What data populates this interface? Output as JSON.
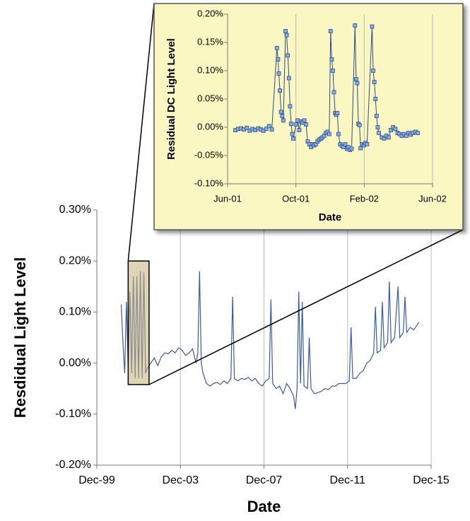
{
  "chart_data": [
    {
      "type": "line",
      "xlabel": "Date",
      "ylabel": "Resdidual Light Level",
      "xlim": [
        "1999-12",
        "2015-12"
      ],
      "xticks": [
        {
          "value": "1999-12",
          "label": "Dec-99"
        },
        {
          "value": "2003-12",
          "label": "Dec-03"
        },
        {
          "value": "2007-12",
          "label": "Dec-07"
        },
        {
          "value": "2011-12",
          "label": "Dec-11"
        },
        {
          "value": "2015-12",
          "label": "Dec-15"
        }
      ],
      "ylim": [
        -0.2,
        0.3
      ],
      "yticks": [
        {
          "value": -0.2,
          "label": "-0.20%"
        },
        {
          "value": -0.1,
          "label": "-0.10%"
        },
        {
          "value": 0,
          "label": "0.00%"
        },
        {
          "value": 0.1,
          "label": "0.10%"
        },
        {
          "value": 0.2,
          "label": "0.20%"
        },
        {
          "value": 0.3,
          "label": "0.30%"
        }
      ],
      "grid": "x",
      "series": [
        {
          "color": "#3a5ba0",
          "x": [
            "2001-02",
            "2001-03",
            "2001-04",
            "2001-05",
            "2001-06",
            "2001-07",
            "2001-08",
            "2001-09",
            "2001-10",
            "2001-11",
            "2001-12",
            "2002-01",
            "2002-02",
            "2002-03",
            "2002-04",
            "2002-05",
            "2002-07",
            "2002-09",
            "2002-11",
            "2003-01",
            "2003-03",
            "2003-05",
            "2003-07",
            "2003-09",
            "2003-11",
            "2004-01",
            "2004-03",
            "2004-05",
            "2004-07",
            "2004-09",
            "2004-10",
            "2004-11",
            "2004-12",
            "2005-01",
            "2005-03",
            "2005-05",
            "2005-07",
            "2005-09",
            "2005-11",
            "2006-01",
            "2006-03",
            "2006-05",
            "2006-06",
            "2006-07",
            "2006-09",
            "2006-11",
            "2007-01",
            "2007-03",
            "2007-05",
            "2007-07",
            "2007-09",
            "2007-11",
            "2008-01",
            "2008-03",
            "2008-04",
            "2008-05",
            "2008-07",
            "2008-09",
            "2008-11",
            "2009-01",
            "2009-03",
            "2009-05",
            "2009-06",
            "2009-07",
            "2009-08",
            "2009-09",
            "2009-10",
            "2009-11",
            "2010-01",
            "2010-02",
            "2010-03",
            "2010-05",
            "2010-07",
            "2010-09",
            "2010-11",
            "2011-01",
            "2011-03",
            "2011-05",
            "2011-07",
            "2011-09",
            "2011-11",
            "2012-01",
            "2012-02",
            "2012-03",
            "2012-05",
            "2012-07",
            "2012-09",
            "2012-11",
            "2013-01",
            "2013-03",
            "2013-04",
            "2013-05",
            "2013-07",
            "2013-08",
            "2013-09",
            "2013-11",
            "2013-12",
            "2014-01",
            "2014-03",
            "2014-05",
            "2014-06",
            "2014-08",
            "2014-09",
            "2014-10",
            "2014-12",
            "2015-02",
            "2015-04",
            "2015-05"
          ],
          "values": [
            0.115,
            0.04,
            -0.02,
            0.12,
            -0.01,
            0.14,
            -0.02,
            0.17,
            -0.03,
            0.17,
            -0.03,
            0.18,
            -0.03,
            0.178,
            -0.02,
            -0.01,
            0.0,
            0.01,
            -0.005,
            0.012,
            0.02,
            0.018,
            0.025,
            0.02,
            0.03,
            0.025,
            0.015,
            0.02,
            0.028,
            0.0,
            0.02,
            0.18,
            0.0,
            -0.02,
            -0.04,
            -0.045,
            -0.04,
            -0.038,
            -0.042,
            -0.035,
            -0.04,
            -0.03,
            0.13,
            -0.03,
            -0.035,
            -0.03,
            -0.032,
            -0.028,
            -0.035,
            -0.03,
            -0.04,
            -0.045,
            -0.035,
            -0.03,
            0.125,
            -0.04,
            -0.05,
            -0.045,
            -0.06,
            -0.04,
            -0.05,
            -0.065,
            -0.09,
            -0.05,
            0.14,
            -0.04,
            0.12,
            -0.045,
            -0.05,
            0.05,
            -0.05,
            -0.06,
            -0.058,
            -0.055,
            -0.05,
            -0.052,
            -0.045,
            -0.045,
            -0.04,
            -0.04,
            -0.04,
            -0.035,
            0.07,
            -0.03,
            -0.03,
            -0.02,
            -0.015,
            0.0,
            0.005,
            0.02,
            0.11,
            0.02,
            0.025,
            0.12,
            0.03,
            0.04,
            0.16,
            0.04,
            0.05,
            0.15,
            0.05,
            0.06,
            0.13,
            0.06,
            0.07,
            0.065,
            0.075,
            0.08
          ]
        }
      ]
    },
    {
      "type": "line",
      "xlabel": "Date",
      "ylabel": "Residual DC Light Level",
      "xlim": [
        "2001-06",
        "2002-06"
      ],
      "xticks": [
        {
          "value": "2001-06",
          "label": "Jun-01"
        },
        {
          "value": "2001-10",
          "label": "Oct-01"
        },
        {
          "value": "2002-02",
          "label": "Feb-02"
        },
        {
          "value": "2002-06",
          "label": "Jun-02"
        }
      ],
      "ylim": [
        -0.1,
        0.2
      ],
      "yticks": [
        {
          "value": -0.1,
          "label": "-0.10%"
        },
        {
          "value": -0.05,
          "label": "-0.05%"
        },
        {
          "value": 0,
          "label": "0.00%"
        },
        {
          "value": 0.05,
          "label": "0.05%"
        },
        {
          "value": 0.1,
          "label": "0.10%"
        },
        {
          "value": 0.15,
          "label": "0.15%"
        },
        {
          "value": 0.2,
          "label": "0.20%"
        }
      ],
      "grid": "x",
      "marker": "square",
      "series": [
        {
          "color": "#2c4a85",
          "x": [
            "2001-06-15",
            "2001-06-20",
            "2001-06-25",
            "2001-06-30",
            "2001-07-05",
            "2001-07-10",
            "2001-07-15",
            "2001-07-20",
            "2001-07-25",
            "2001-07-30",
            "2001-08-04",
            "2001-08-09",
            "2001-08-14",
            "2001-08-19",
            "2001-08-28",
            "2001-08-30",
            "2001-09-01",
            "2001-09-03",
            "2001-09-05",
            "2001-09-07",
            "2001-09-09",
            "2001-09-13",
            "2001-09-15",
            "2001-09-17",
            "2001-09-19",
            "2001-09-21",
            "2001-09-23",
            "2001-09-25",
            "2001-09-27",
            "2001-10-01",
            "2001-10-04",
            "2001-10-07",
            "2001-10-10",
            "2001-10-13",
            "2001-10-16",
            "2001-10-19",
            "2001-10-22",
            "2001-10-25",
            "2001-10-28",
            "2001-10-31",
            "2001-11-03",
            "2001-11-06",
            "2001-11-09",
            "2001-11-12",
            "2001-11-15",
            "2001-11-18",
            "2001-11-21",
            "2001-11-24",
            "2001-11-27",
            "2001-11-30",
            "2001-12-02",
            "2001-12-04",
            "2001-12-06",
            "2001-12-08",
            "2001-12-10",
            "2001-12-12",
            "2001-12-14",
            "2001-12-16",
            "2001-12-19",
            "2001-12-22",
            "2001-12-25",
            "2001-12-28",
            "2001-12-31",
            "2002-01-03",
            "2002-01-06",
            "2002-01-09",
            "2002-01-15",
            "2002-01-17",
            "2002-01-19",
            "2002-01-21",
            "2002-01-23",
            "2002-01-25",
            "2002-01-28",
            "2002-01-31",
            "2002-02-03",
            "2002-02-06",
            "2002-02-15",
            "2002-02-17",
            "2002-02-19",
            "2002-02-21",
            "2002-02-23",
            "2002-02-25",
            "2002-02-27",
            "2002-03-02",
            "2002-03-06",
            "2002-03-10",
            "2002-03-14",
            "2002-03-18",
            "2002-03-22",
            "2002-03-26",
            "2002-03-30",
            "2002-04-03",
            "2002-04-07",
            "2002-04-11",
            "2002-04-15",
            "2002-04-19",
            "2002-04-23",
            "2002-04-27",
            "2002-05-01",
            "2002-05-05"
          ],
          "values": [
            -0.005,
            -0.003,
            -0.002,
            -0.004,
            -0.001,
            -0.006,
            -0.003,
            -0.005,
            -0.002,
            -0.004,
            -0.006,
            -0.003,
            0.002,
            -0.004,
            0.14,
            0.12,
            0.095,
            0.065,
            0.027,
            0.02,
            0.012,
            0.17,
            0.163,
            0.127,
            0.087,
            0.037,
            0.006,
            -0.012,
            -0.02,
            0.005,
            0.012,
            -0.005,
            0.01,
            0.008,
            0.012,
            0.005,
            -0.025,
            -0.03,
            -0.035,
            -0.03,
            -0.032,
            -0.03,
            -0.025,
            -0.022,
            -0.02,
            -0.018,
            -0.015,
            -0.01,
            -0.008,
            -0.012,
            0.17,
            0.12,
            0.1,
            0.062,
            0.025,
            0.022,
            0.025,
            -0.012,
            -0.03,
            -0.033,
            -0.035,
            -0.03,
            -0.038,
            -0.035,
            -0.04,
            -0.038,
            0.18,
            0.085,
            0.078,
            0.006,
            0.004,
            -0.037,
            -0.03,
            -0.032,
            -0.028,
            -0.03,
            0.178,
            0.1,
            0.08,
            0.05,
            0.02,
            0.0,
            -0.01,
            -0.018,
            -0.02,
            -0.015,
            -0.018,
            -0.005,
            0.0,
            -0.003,
            -0.01,
            -0.012,
            -0.015,
            -0.012,
            -0.015,
            -0.01,
            -0.013,
            -0.01,
            -0.008,
            -0.01
          ]
        }
      ]
    }
  ]
}
